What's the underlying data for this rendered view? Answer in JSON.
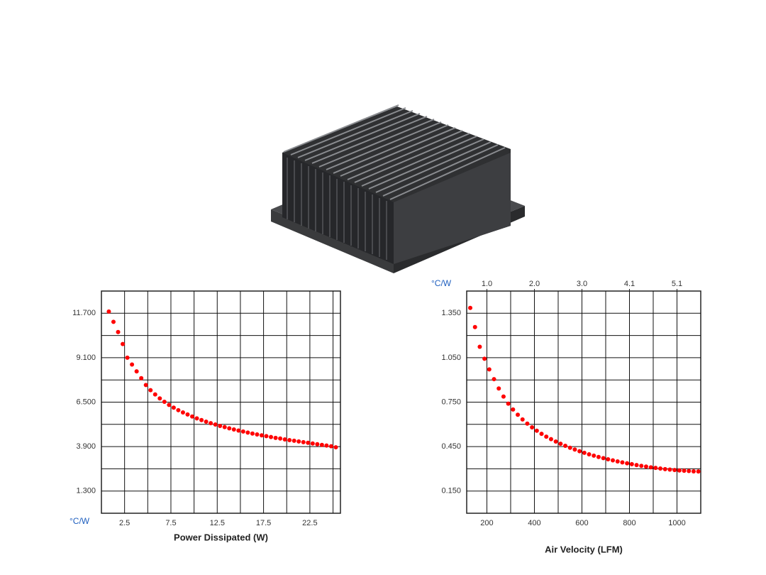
{
  "chart_data": [
    {
      "type": "scatter",
      "xlabel": "Power Dissipated (W)",
      "unit_label": "°C/W",
      "unit_label_corner": "bottom-left",
      "color": "#ff0000",
      "grid": true,
      "xlim": [
        0,
        25.8
      ],
      "xticks": [
        2.5,
        7.5,
        12.5,
        17.5,
        22.5
      ],
      "xgrid_minor": [
        5,
        10,
        15,
        20,
        25
      ],
      "ylim": [
        0,
        13
      ],
      "yticks": [
        {
          "value": 1.3,
          "label": "1.300"
        },
        {
          "value": 3.9,
          "label": "3.900"
        },
        {
          "value": 6.5,
          "label": "6.500"
        },
        {
          "value": 9.1,
          "label": "9.100"
        },
        {
          "value": 11.7,
          "label": "11.700"
        }
      ],
      "ygrid_minor": [
        2.6,
        5.2,
        7.8,
        10.4
      ],
      "x": [
        0.8,
        1.3,
        1.8,
        2.3,
        2.8,
        3.3,
        3.8,
        4.3,
        4.8,
        5.3,
        5.8,
        6.3,
        6.8,
        7.3,
        7.8,
        8.3,
        8.8,
        9.3,
        9.8,
        10.3,
        10.8,
        11.3,
        11.8,
        12.3,
        12.8,
        13.3,
        13.8,
        14.3,
        14.8,
        15.3,
        15.8,
        16.3,
        16.8,
        17.3,
        17.8,
        18.3,
        18.8,
        19.3,
        19.8,
        20.3,
        20.8,
        21.3,
        21.8,
        22.3,
        22.8,
        23.3,
        23.8,
        24.3,
        24.8,
        25.3
      ],
      "values": [
        11.8,
        11.2,
        10.6,
        9.9,
        9.1,
        8.7,
        8.3,
        7.9,
        7.5,
        7.2,
        6.95,
        6.72,
        6.52,
        6.34,
        6.18,
        6.03,
        5.9,
        5.78,
        5.66,
        5.55,
        5.45,
        5.36,
        5.27,
        5.19,
        5.11,
        5.04,
        4.97,
        4.9,
        4.84,
        4.78,
        4.72,
        4.66,
        4.61,
        4.56,
        4.51,
        4.46,
        4.41,
        4.37,
        4.32,
        4.28,
        4.24,
        4.2,
        4.16,
        4.12,
        4.08,
        4.04,
        4.0,
        3.96,
        3.92,
        3.86
      ]
    },
    {
      "type": "scatter",
      "xlabel": "Air Velocity (LFM)",
      "unit_label": "°C/W",
      "unit_label_corner": "top-left",
      "color": "#ff0000",
      "grid": true,
      "xlim": [
        115,
        1100
      ],
      "xticks": [
        200,
        400,
        600,
        800,
        1000
      ],
      "xgrid_minor": [
        300,
        500,
        700,
        900
      ],
      "x2lim": [
        0.5842,
        5.588
      ],
      "x2ticks": [
        {
          "value": 1.016,
          "label": "1.0"
        },
        {
          "value": 2.032,
          "label": "2.0"
        },
        {
          "value": 3.048,
          "label": "3.0"
        },
        {
          "value": 4.064,
          "label": "4.1"
        },
        {
          "value": 5.08,
          "label": "5.1"
        }
      ],
      "ylim": [
        0,
        1.5
      ],
      "yticks": [
        {
          "value": 0.15,
          "label": "0.150"
        },
        {
          "value": 0.45,
          "label": "0.450"
        },
        {
          "value": 0.75,
          "label": "0.750"
        },
        {
          "value": 1.05,
          "label": "1.050"
        },
        {
          "value": 1.35,
          "label": "1.350"
        }
      ],
      "ygrid_minor": [
        0.3,
        0.6,
        0.9,
        1.2
      ],
      "x": [
        130,
        150,
        170,
        190,
        210,
        230,
        250,
        270,
        290,
        310,
        330,
        350,
        370,
        390,
        410,
        430,
        450,
        470,
        490,
        510,
        530,
        550,
        570,
        590,
        610,
        630,
        650,
        670,
        690,
        710,
        730,
        750,
        770,
        790,
        810,
        830,
        850,
        870,
        890,
        910,
        930,
        950,
        970,
        990,
        1010,
        1030,
        1050,
        1070,
        1090
      ],
      "values": [
        1.386,
        1.257,
        1.124,
        1.043,
        0.971,
        0.905,
        0.842,
        0.788,
        0.74,
        0.7,
        0.665,
        0.633,
        0.605,
        0.58,
        0.557,
        0.536,
        0.517,
        0.5,
        0.484,
        0.469,
        0.455,
        0.442,
        0.43,
        0.419,
        0.408,
        0.398,
        0.389,
        0.38,
        0.372,
        0.364,
        0.357,
        0.35,
        0.343,
        0.337,
        0.331,
        0.325,
        0.32,
        0.315,
        0.31,
        0.306,
        0.302,
        0.298,
        0.295,
        0.292,
        0.289,
        0.287,
        0.285,
        0.283,
        0.282
      ]
    }
  ]
}
